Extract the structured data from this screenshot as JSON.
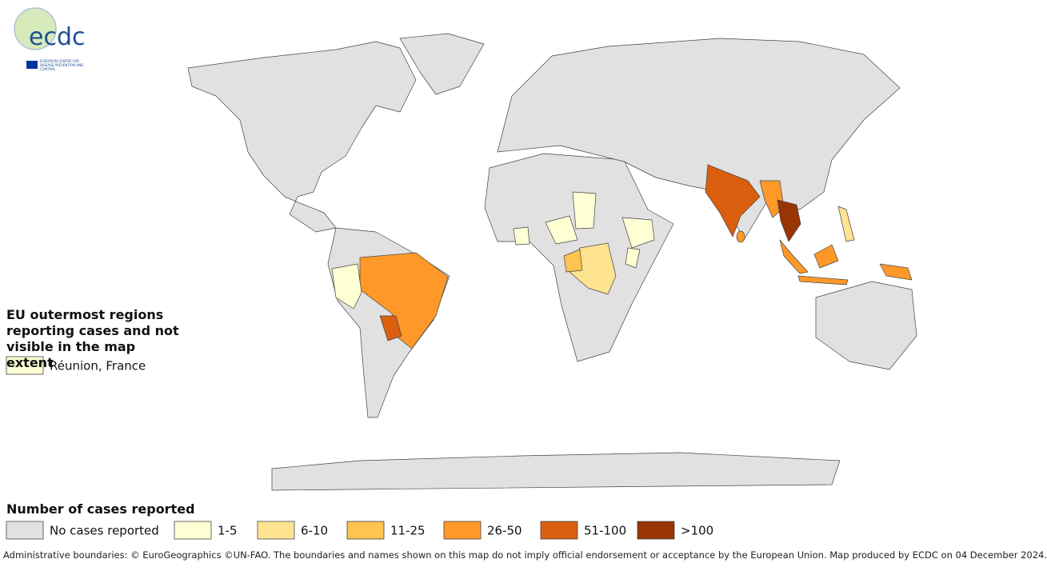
{
  "logo": {
    "wordmark": "ecdc",
    "org": "EUROPEAN CENTRE FOR DISEASE PREVENTION AND CONTROL"
  },
  "outermost": {
    "title": "EU outermost regions reporting cases and not visible in the map extent",
    "items": [
      {
        "label": "Réunion, France",
        "class": 1
      }
    ]
  },
  "legend": {
    "title": "Number of cases reported",
    "classes": [
      {
        "label": "No cases reported",
        "color": "#e1e1e1"
      },
      {
        "label": "1-5",
        "color": "#ffffd4"
      },
      {
        "label": "6-10",
        "color": "#fee391"
      },
      {
        "label": "11-25",
        "color": "#fec44f"
      },
      {
        "label": "26-50",
        "color": "#fe9929"
      },
      {
        "label": "51-100",
        "color": "#d95f0e"
      },
      {
        "label": ">100",
        "color": "#993404"
      }
    ]
  },
  "footer": "Administrative boundaries: © EuroGeographics ©UN-FAO. The boundaries and names shown on this map do not imply official endorsement or acceptance by the European Union. Map produced by ECDC on 04 December 2024."
}
